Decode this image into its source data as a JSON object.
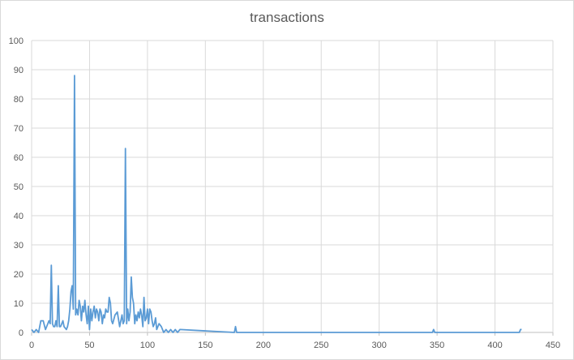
{
  "chart_data": {
    "type": "line",
    "title": "transactions",
    "xlabel": "",
    "ylabel": "",
    "xlim": [
      0,
      450
    ],
    "ylim": [
      0,
      100
    ],
    "x_ticks": [
      0,
      50,
      100,
      150,
      200,
      250,
      300,
      350,
      400,
      450
    ],
    "y_ticks": [
      0,
      10,
      20,
      30,
      40,
      50,
      60,
      70,
      80,
      90,
      100
    ],
    "grid": true,
    "legend": "none",
    "series_color": "#5b9bd5",
    "series": [
      {
        "x": [
          0,
          2,
          4,
          6,
          8,
          10,
          12,
          14,
          15,
          16,
          17,
          18,
          19,
          20,
          21,
          22,
          23,
          24,
          25,
          26,
          27,
          28,
          30,
          31,
          32,
          33,
          34,
          35,
          36,
          37,
          38,
          39,
          40,
          41,
          42,
          43,
          44,
          45,
          46,
          47,
          48,
          49,
          50,
          51,
          52,
          53,
          54,
          55,
          56,
          57,
          58,
          59,
          60,
          61,
          62,
          63,
          64,
          65,
          66,
          67,
          68,
          69,
          70,
          72,
          74,
          76,
          78,
          79,
          80,
          81,
          82,
          83,
          84,
          85,
          86,
          87,
          88,
          89,
          90,
          91,
          92,
          93,
          94,
          95,
          96,
          97,
          98,
          99,
          100,
          101,
          102,
          103,
          104,
          105,
          106,
          107,
          108,
          110,
          112,
          114,
          116,
          118,
          120,
          122,
          124,
          126,
          128,
          175,
          176,
          177,
          178,
          346,
          347,
          348,
          420,
          421,
          422,
          423
        ],
        "values": [
          1,
          0,
          1,
          0,
          4,
          4,
          1,
          3,
          4,
          3,
          23,
          3,
          2,
          2,
          4,
          2,
          16,
          2,
          2,
          3,
          4,
          2,
          1,
          2,
          4,
          8,
          14,
          16,
          8,
          88,
          6,
          8,
          6,
          11,
          9,
          4,
          9,
          7,
          11,
          6,
          3,
          9,
          1,
          8,
          4,
          7,
          9,
          5,
          8,
          7,
          4,
          8,
          7,
          3,
          6,
          5,
          8,
          7,
          7,
          12,
          10,
          4,
          3,
          6,
          7,
          2,
          6,
          3,
          4,
          63,
          3,
          8,
          4,
          7,
          19,
          12,
          10,
          3,
          6,
          4,
          7,
          5,
          8,
          6,
          2,
          12,
          4,
          5,
          8,
          3,
          8,
          7,
          4,
          2,
          3,
          5,
          1,
          3,
          2,
          0,
          1,
          0,
          1,
          0,
          1,
          0,
          1,
          0,
          2,
          0,
          0,
          0,
          1,
          0,
          0,
          0,
          1,
          1
        ]
      }
    ]
  }
}
